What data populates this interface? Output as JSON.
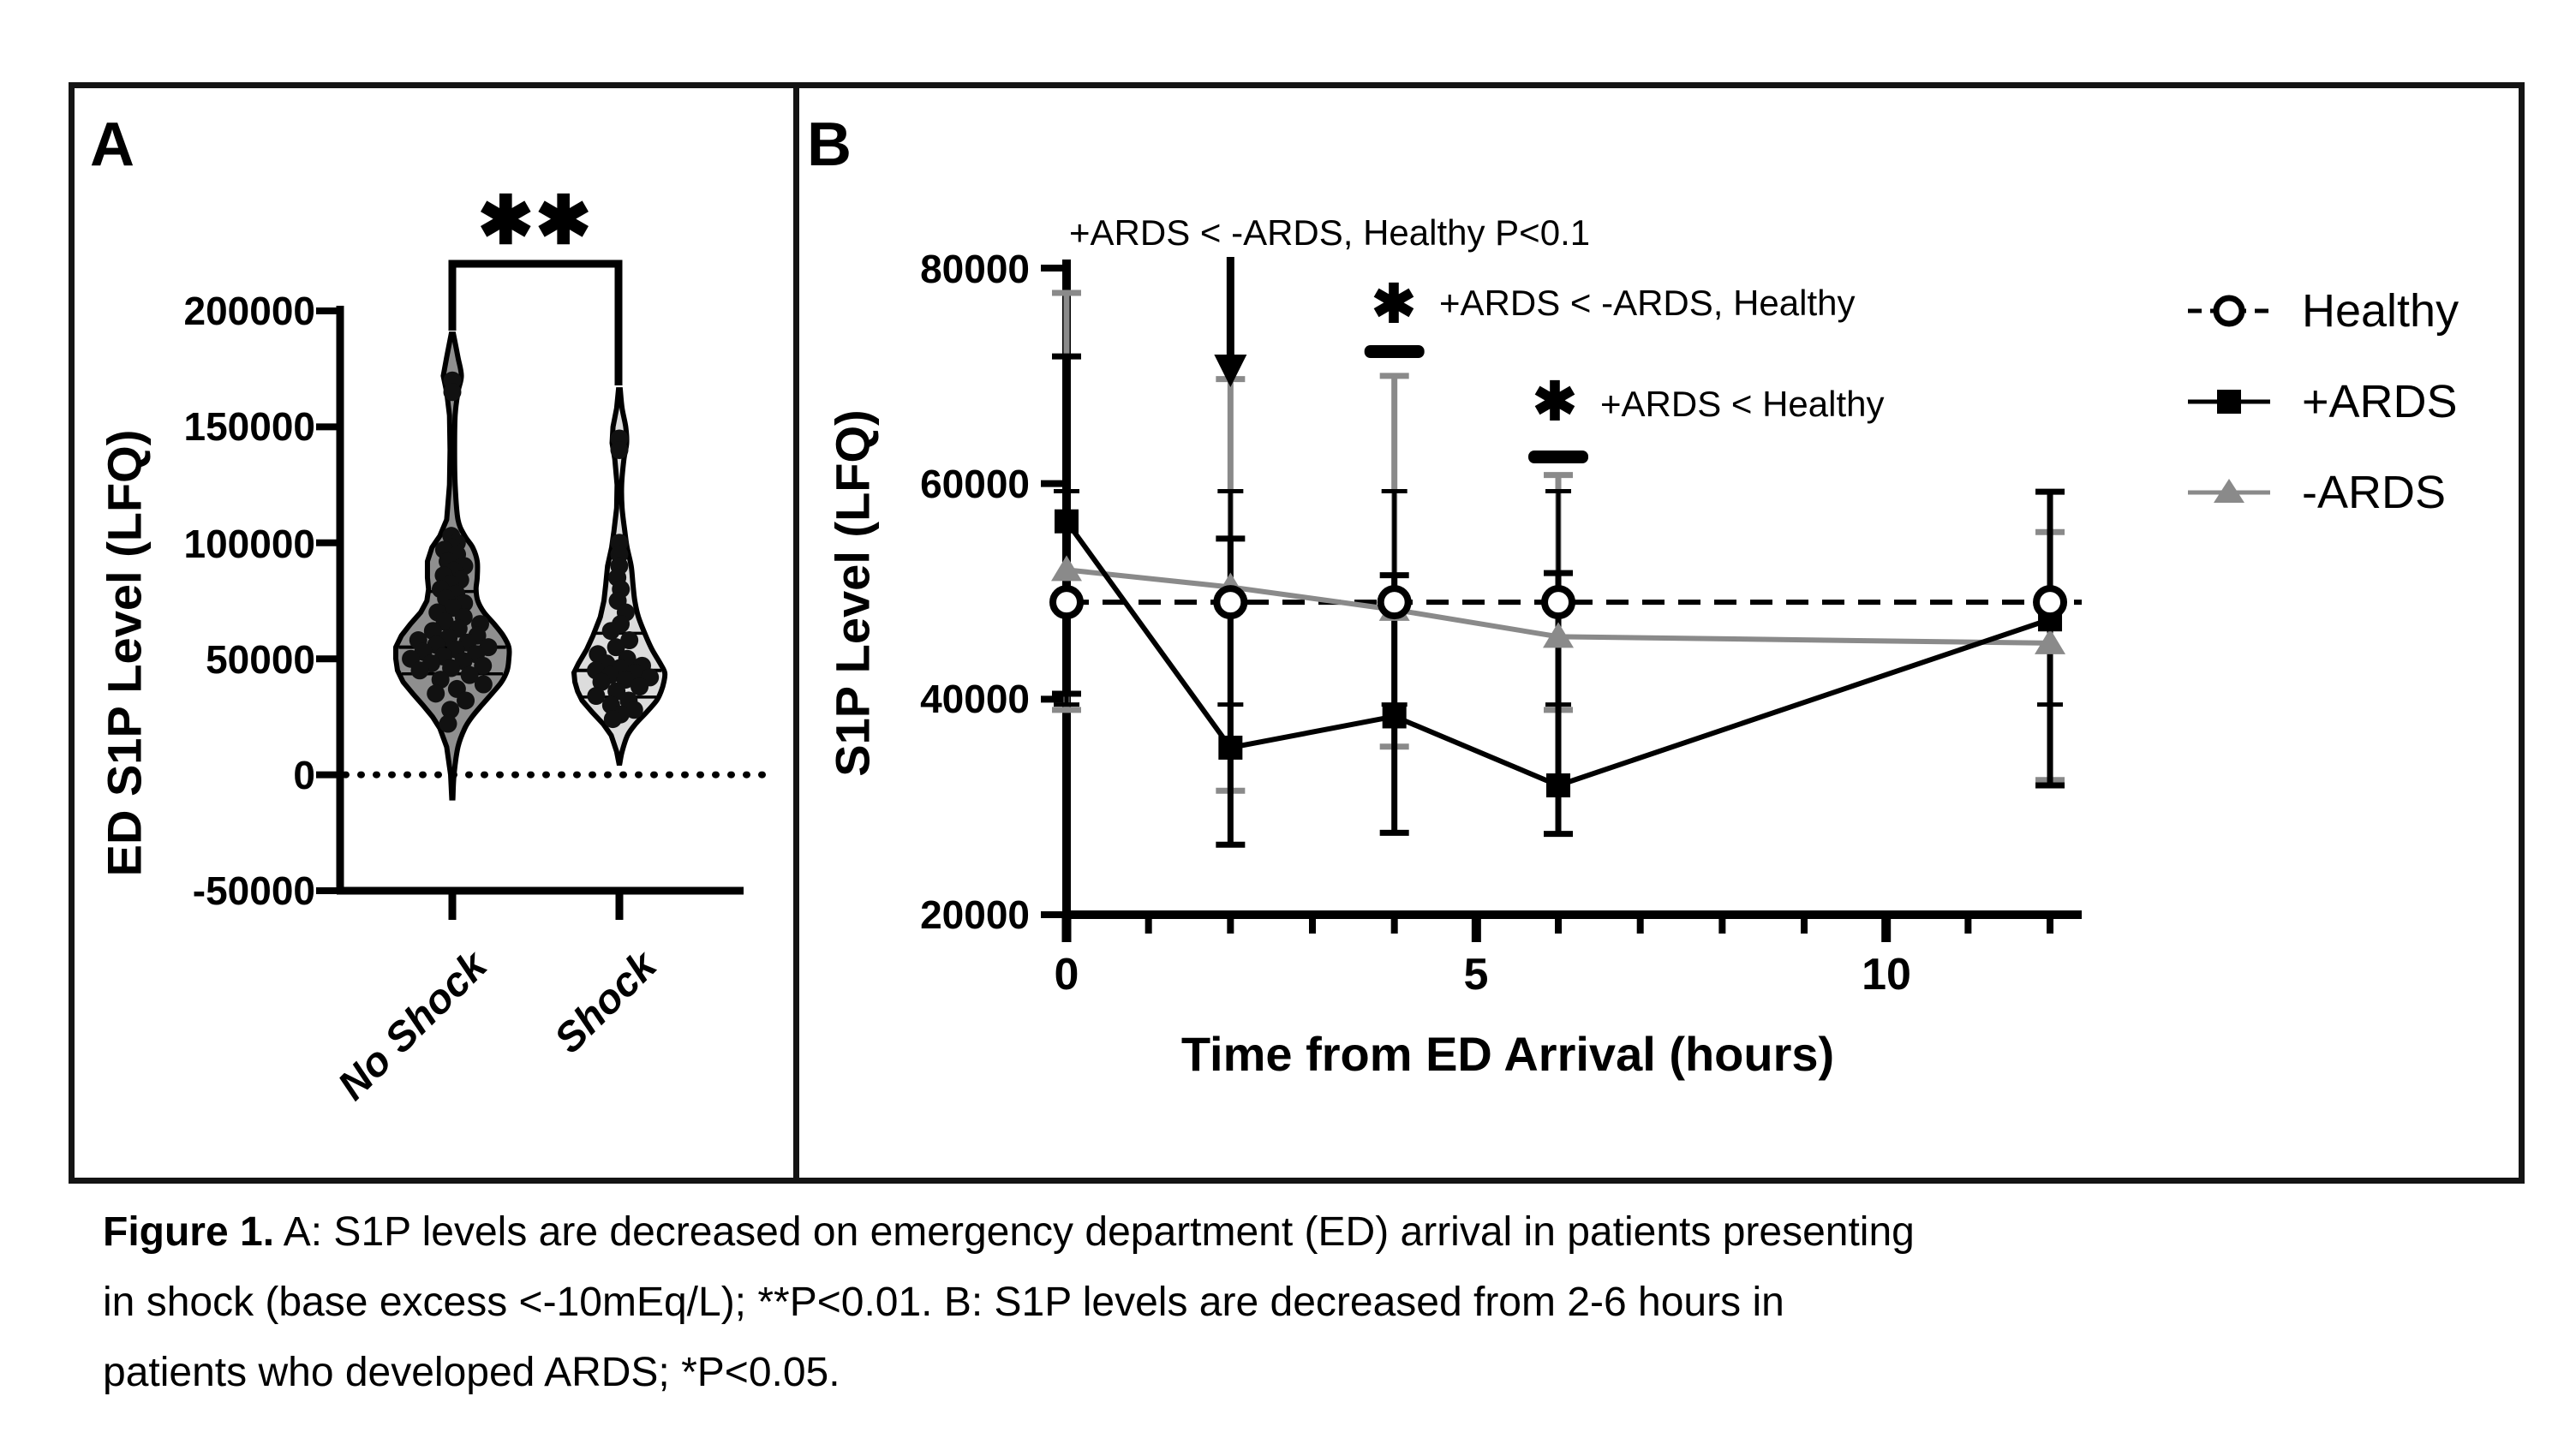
{
  "figure": {
    "panel_a": {
      "label": "A",
      "ylabel": "ED S1P Level (LFQ)",
      "significance": "✱✱",
      "categories": [
        "No Shock",
        "Shock"
      ]
    },
    "panel_b": {
      "label": "B",
      "ylabel": "S1P Level (LFQ)",
      "xlabel": "Time from ED Arrival (hours)",
      "annotation_arrow_text": "+ARDS < -ARDS, Healthy P<0.1",
      "annotation_bar1_symbol": "✱",
      "annotation_bar1_text": "+ARDS < -ARDS, Healthy",
      "annotation_bar2_symbol": "✱",
      "annotation_bar2_text": "+ARDS < Healthy",
      "legend": [
        {
          "label": "Healthy"
        },
        {
          "label": "+ARDS"
        },
        {
          "label": "-ARDS"
        }
      ]
    },
    "caption": {
      "prefix": "Figure 1.",
      "line1": " A: S1P levels are decreased on emergency department (ED) arrival in patients presenting",
      "line2": "in shock (base excess <-10mEq/L); **P<0.01. B: S1P levels are decreased from 2-6 hours in",
      "line3": "patients who developed ARDS; *P<0.05."
    }
  },
  "chart_data": [
    {
      "type": "violin",
      "panel": "A",
      "ylabel": "ED S1P Level (LFQ)",
      "ylim": [
        -50000,
        200000
      ],
      "yticks": [
        200000,
        150000,
        100000,
        50000,
        0,
        -50000
      ],
      "zero_line": true,
      "grid": false,
      "significance": {
        "label": "**",
        "between": [
          "No Shock",
          "Shock"
        ],
        "p": "P<0.01"
      },
      "categories": [
        "No Shock",
        "Shock"
      ],
      "series": [
        {
          "name": "No Shock",
          "fill": "#8f8f8f",
          "median": 55000,
          "q1": 43500,
          "q3": 79000,
          "min": -10000,
          "max": 190000,
          "n": 48,
          "outline": [
            [
              190000,
              0.02
            ],
            [
              180000,
              0.1
            ],
            [
              172000,
              0.16
            ],
            [
              165000,
              0.1
            ],
            [
              155000,
              0.05
            ],
            [
              140000,
              0.04
            ],
            [
              125000,
              0.05
            ],
            [
              110000,
              0.1
            ],
            [
              103000,
              0.22
            ],
            [
              98000,
              0.36
            ],
            [
              92000,
              0.44
            ],
            [
              85000,
              0.44
            ],
            [
              80000,
              0.42
            ],
            [
              75000,
              0.45
            ],
            [
              70000,
              0.56
            ],
            [
              65000,
              0.74
            ],
            [
              60000,
              0.9
            ],
            [
              55000,
              1.0
            ],
            [
              50000,
              1.0
            ],
            [
              45000,
              0.97
            ],
            [
              40000,
              0.87
            ],
            [
              35000,
              0.7
            ],
            [
              30000,
              0.52
            ],
            [
              25000,
              0.35
            ],
            [
              20000,
              0.22
            ],
            [
              12000,
              0.1
            ],
            [
              0,
              0.03
            ],
            [
              -10000,
              0.01
            ]
          ],
          "points": [
            170000,
            165000,
            103000,
            100000,
            98000,
            97000,
            95000,
            92000,
            90000,
            88000,
            86000,
            84000,
            82000,
            80000,
            78000,
            76000,
            74000,
            72000,
            70000,
            68000,
            66000,
            65000,
            63000,
            62000,
            60000,
            59000,
            58000,
            57000,
            56000,
            55000,
            54000,
            53000,
            52000,
            51000,
            50000,
            49000,
            48000,
            47000,
            46000,
            45000,
            43000,
            41000,
            39000,
            37000,
            35000,
            32000,
            28000,
            22000
          ]
        },
        {
          "name": "Shock",
          "fill": "#dcdcdc",
          "median": 45000,
          "q1": 33500,
          "q3": 61000,
          "min": 5000,
          "max": 166000,
          "n": 32,
          "outline": [
            [
              166000,
              0.02
            ],
            [
              158000,
              0.06
            ],
            [
              150000,
              0.14
            ],
            [
              143000,
              0.16
            ],
            [
              136000,
              0.1
            ],
            [
              125000,
              0.05
            ],
            [
              115000,
              0.06
            ],
            [
              105000,
              0.12
            ],
            [
              98000,
              0.17
            ],
            [
              90000,
              0.26
            ],
            [
              82000,
              0.3
            ],
            [
              75000,
              0.34
            ],
            [
              68000,
              0.42
            ],
            [
              60000,
              0.58
            ],
            [
              54000,
              0.72
            ],
            [
              48000,
              0.9
            ],
            [
              44000,
              1.0
            ],
            [
              40000,
              0.98
            ],
            [
              36000,
              0.92
            ],
            [
              32000,
              0.82
            ],
            [
              27000,
              0.6
            ],
            [
              22000,
              0.36
            ],
            [
              17000,
              0.18
            ],
            [
              10000,
              0.06
            ],
            [
              5000,
              0.01
            ]
          ],
          "points": [
            145000,
            140000,
            100000,
            95000,
            90000,
            85000,
            80000,
            75000,
            70000,
            65000,
            62000,
            58000,
            55000,
            52000,
            50000,
            48000,
            47000,
            46000,
            45000,
            44000,
            43000,
            42000,
            41000,
            40000,
            38000,
            36000,
            34000,
            32000,
            30000,
            28000,
            26000,
            24000
          ]
        }
      ]
    },
    {
      "type": "line",
      "panel": "B",
      "xlabel": "Time from ED Arrival (hours)",
      "ylabel": "S1P Level (LFQ)",
      "ylim": [
        20000,
        80000
      ],
      "yticks": [
        80000,
        60000,
        40000,
        20000
      ],
      "xticks_major": [
        0,
        5,
        10
      ],
      "xticks_minor": [
        1,
        2,
        3,
        4,
        6,
        7,
        8,
        9,
        11,
        12
      ],
      "x": [
        0,
        2,
        4,
        6,
        12
      ],
      "legend_position": "right",
      "series": [
        {
          "name": "Healthy",
          "marker": "open-circle",
          "line": "dashed",
          "color": "#000000",
          "values": [
            49000,
            49000,
            49000,
            49000,
            49000
          ],
          "err_lo": [
            39500,
            39500,
            39500,
            39500,
            39500
          ],
          "err_hi": [
            59300,
            59300,
            59300,
            59300,
            59300
          ]
        },
        {
          "name": "+ARDS",
          "marker": "filled-square",
          "line": "solid",
          "color": "#000000",
          "values": [
            56500,
            35500,
            38400,
            32000,
            47400
          ],
          "err_lo": [
            40500,
            26500,
            27600,
            27500,
            32000
          ],
          "err_hi": [
            71800,
            54900,
            51500,
            51700,
            59250
          ]
        },
        {
          "name": "-ARDS",
          "marker": "filled-triangle",
          "line": "solid",
          "color": "#8c8c8c",
          "values": [
            52000,
            50400,
            48300,
            45800,
            45200
          ],
          "err_lo": [
            39000,
            31500,
            35600,
            39000,
            32500
          ],
          "err_hi": [
            77700,
            69700,
            70000,
            60800,
            55500
          ]
        }
      ],
      "annotations": [
        {
          "type": "arrow",
          "x": 2,
          "text": "+ARDS < -ARDS, Healthy P<0.1"
        },
        {
          "type": "bar",
          "x": 4,
          "symbol": "✱",
          "text": "+ARDS < -ARDS, Healthy"
        },
        {
          "type": "bar",
          "x": 6,
          "symbol": "✱",
          "text": "+ARDS < Healthy"
        }
      ]
    }
  ]
}
